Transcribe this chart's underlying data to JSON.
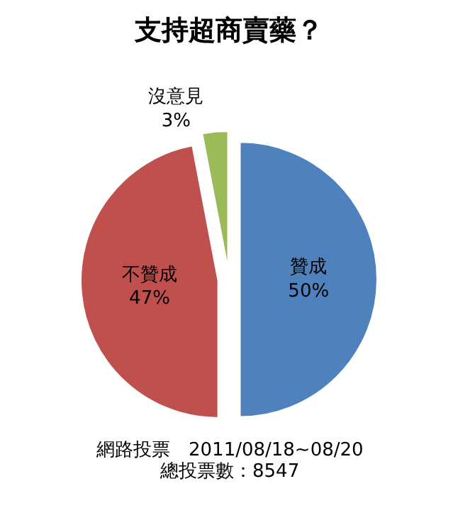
{
  "chart_data": {
    "type": "pie",
    "title": "支持超商賣藥？",
    "categories": [
      "贊成",
      "不贊成",
      "沒意見"
    ],
    "values": [
      50,
      47,
      3
    ],
    "value_labels": [
      "50%",
      "47%",
      "3%"
    ],
    "colors": [
      "#4f81bd",
      "#c0504d",
      "#9bbb59"
    ],
    "annotations": [
      "網路投票　2011/08/18~08/20",
      "總投票數：8547"
    ],
    "legend": false
  }
}
